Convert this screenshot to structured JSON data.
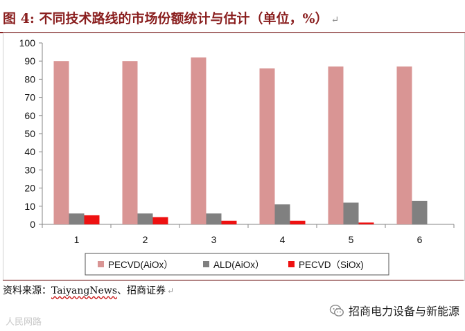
{
  "title": {
    "text": "图 4: 不同技术路线的市场份额统计与估计（单位，%）",
    "mark": "↵"
  },
  "source": {
    "prefix": "资料来源：",
    "brand": "TaiyangNews",
    "suffix": "、招商证券",
    "mark": "↵"
  },
  "wechat": {
    "text": "招商电力设备与新能源",
    "icon": "wechat-icon"
  },
  "watermark": {
    "text": "人民网路"
  },
  "colors": {
    "pecvd_aiox": "#d99594",
    "ald_aiox": "#808080",
    "pecvd_siox": "#ee1111",
    "title": "#8a1f1f"
  },
  "chart_data": {
    "type": "bar",
    "categories": [
      "1",
      "2",
      "3",
      "4",
      "5",
      "6"
    ],
    "series": [
      {
        "name": "PECVD(AiOx）",
        "values": [
          90,
          90,
          92,
          86,
          87,
          87
        ]
      },
      {
        "name": "ALD(AiOx）",
        "values": [
          6,
          6,
          6,
          11,
          12,
          13
        ]
      },
      {
        "name": "PECVD（SiOx)",
        "values": [
          5,
          4,
          2,
          2,
          1,
          null
        ]
      }
    ],
    "ylim": [
      0,
      100
    ],
    "yticks": [
      0,
      10,
      20,
      30,
      40,
      50,
      60,
      70,
      80,
      90,
      100
    ],
    "grid": false,
    "legend": "bottom"
  }
}
